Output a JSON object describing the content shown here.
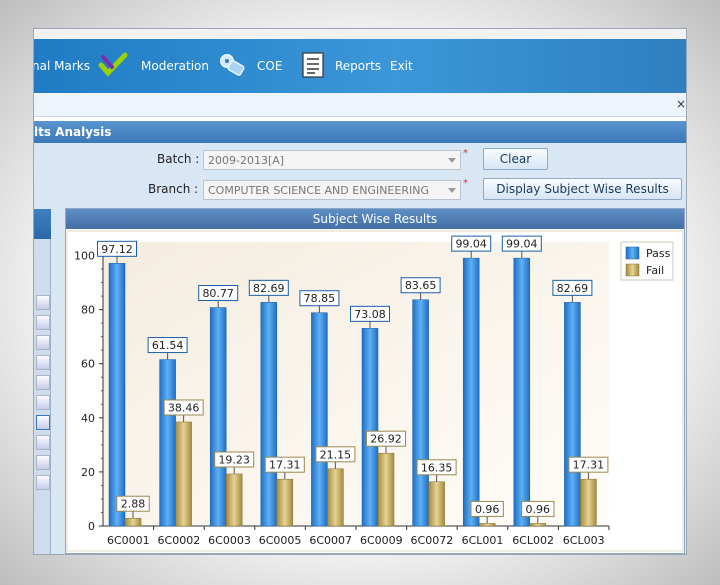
{
  "toolbar": {
    "items": [
      {
        "label": "nal Marks",
        "icon": "marks-icon"
      },
      {
        "label": "Moderation",
        "icon": "moderation-check-icon"
      },
      {
        "label": "COE",
        "icon": "coe-gear-icon"
      },
      {
        "label": "Reports",
        "icon": "reports-list-icon"
      },
      {
        "label": "Exit",
        "icon": ""
      }
    ],
    "close_symbol": "×"
  },
  "page": {
    "title": "lts Analysis"
  },
  "form": {
    "batch_label": "Batch :",
    "batch_value": "2009-2013[A]",
    "branch_label": "Branch :",
    "branch_value": "COMPUTER SCIENCE AND ENGINEERING",
    "required_marker": "*",
    "clear_label": "Clear",
    "display_label": "Display Subject Wise Results"
  },
  "chart_panel": {
    "title": "Subject Wise Results"
  },
  "colors": {
    "pass": "#2f8fe0",
    "fail": "#c8b06a",
    "accent": "#3a78b8"
  },
  "chart_data": {
    "type": "bar",
    "title": "Subject Wise Results",
    "categories": [
      "6C0001",
      "6C0002",
      "6C0003",
      "6C0005",
      "6C0007",
      "6C0009",
      "6C0072",
      "6CL001",
      "6CL002",
      "6CL003"
    ],
    "series": [
      {
        "name": "Pass",
        "values": [
          97.12,
          61.54,
          80.77,
          82.69,
          78.85,
          73.08,
          83.65,
          99.04,
          99.04,
          82.69
        ]
      },
      {
        "name": "Fail",
        "values": [
          2.88,
          38.46,
          19.23,
          17.31,
          21.15,
          26.92,
          16.35,
          0.96,
          0.96,
          17.31
        ]
      }
    ],
    "ylim": [
      0,
      105
    ],
    "yticks": [
      0,
      20,
      40,
      60,
      80,
      100
    ],
    "legend": "top-right"
  }
}
